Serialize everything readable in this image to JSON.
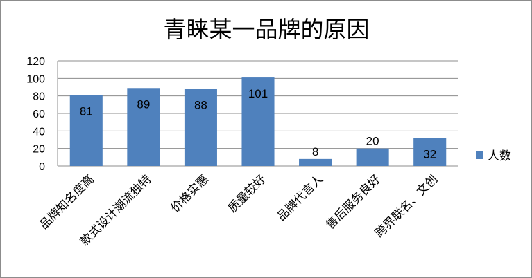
{
  "chart_data": {
    "type": "bar",
    "title": "青睐某一品牌的原因",
    "categories": [
      "品牌知名度高",
      "款式设计潮流独特",
      "价格实惠",
      "质量较好",
      "品牌代言人",
      "售后服务良好",
      "跨界联名、文创"
    ],
    "series": [
      {
        "name": "人数",
        "values": [
          81,
          89,
          88,
          101,
          8,
          20,
          32
        ]
      }
    ],
    "ylim": [
      0,
      120
    ],
    "yticks": [
      0,
      20,
      40,
      60,
      80,
      100,
      120
    ],
    "grid": true,
    "legend_position": "right",
    "bar_color": "#4f81bd",
    "data_labels": true
  }
}
